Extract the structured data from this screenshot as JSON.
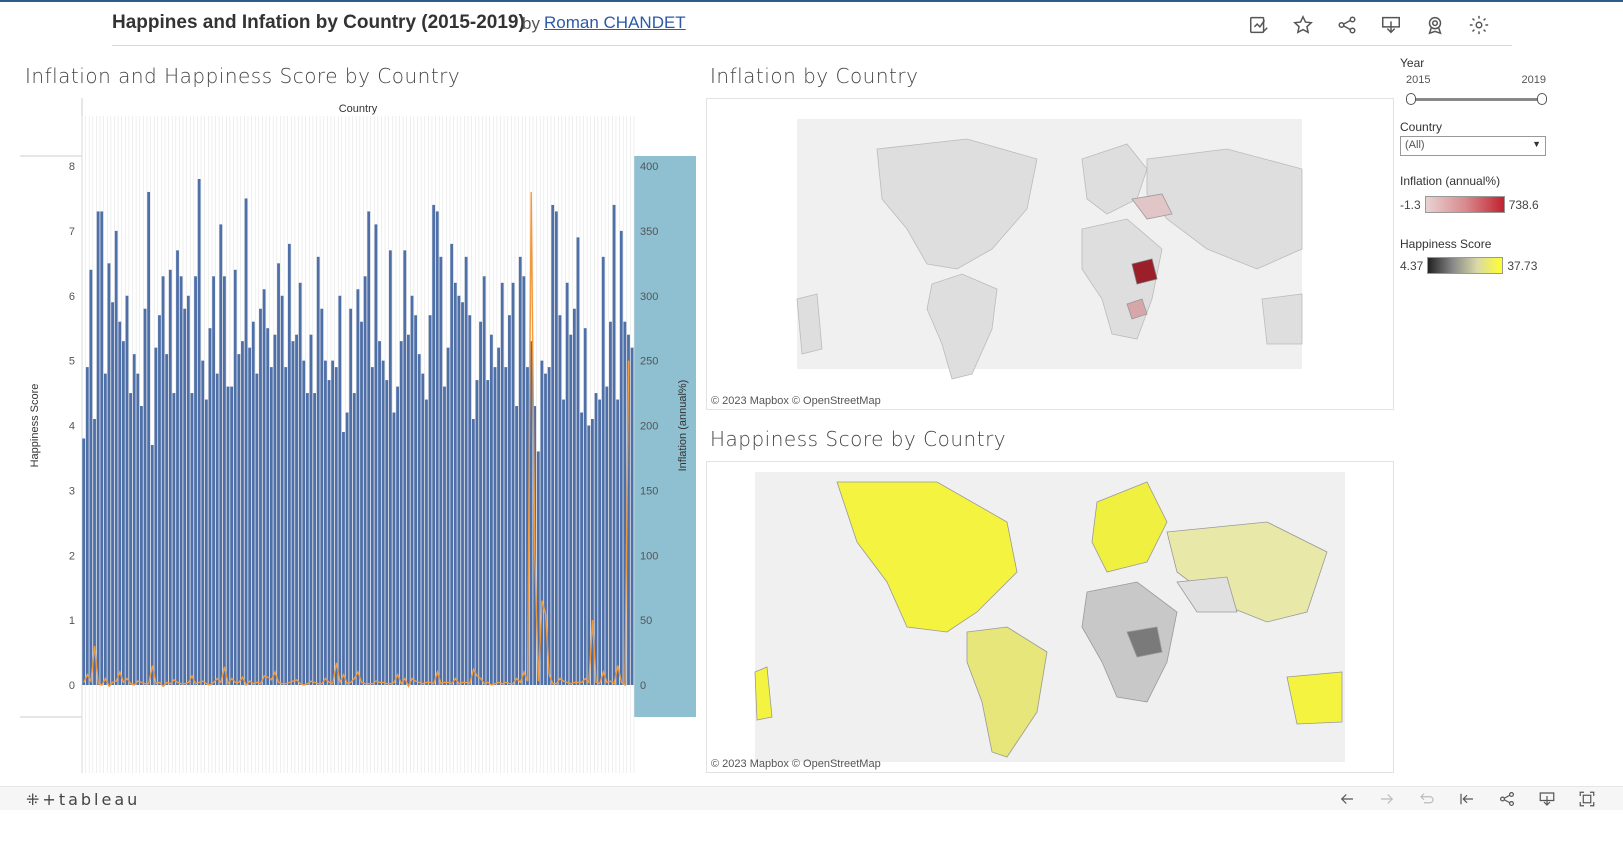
{
  "header": {
    "title": "Happines and Infation by Country (2015-2019)",
    "by": "by",
    "author": "Roman CHANDET",
    "icons": [
      "edit-icon",
      "star-icon",
      "share-icon",
      "download-icon",
      "award-icon",
      "gear-icon"
    ]
  },
  "panels": {
    "bar_chart_title": "Inflation and Happiness Score by Country",
    "inflation_map_title": "Inflation by Country",
    "happiness_map_title": "Happiness Score by Country",
    "map_attribution_1": "© 2023 Mapbox",
    "map_attribution_2": "© OpenStreetMap"
  },
  "filters": {
    "year_label": "Year",
    "year_min": "2015",
    "year_max": "2019",
    "country_label": "Country",
    "country_value": "(All)",
    "inflation_legend_label": "Inflation (annual%)",
    "inflation_min": "-1.3",
    "inflation_max": "738.6",
    "happiness_legend_label": "Happiness Score",
    "happiness_min": "4.37",
    "happiness_max": "37.73"
  },
  "colors": {
    "bar": "#4e6fa7",
    "line": "#f09a3e",
    "right_axis_bg": "#8fc0d1",
    "inflation_high": "#c0232f",
    "happiness_high": "#ffff30"
  },
  "chart_data": {
    "type": "bar",
    "xlabel": "Country",
    "ylabel": "Happiness Score",
    "y2label": "Inflation (annual%)",
    "ylim": [
      0,
      8
    ],
    "y2lim": [
      0,
      400
    ],
    "yticks": [
      "0",
      "1",
      "2",
      "3",
      "4",
      "5",
      "6",
      "7",
      "8"
    ],
    "y2ticks": [
      "0",
      "50",
      "100",
      "150",
      "200",
      "250",
      "300",
      "350",
      "400"
    ],
    "series": [
      {
        "name": "Happiness Score",
        "values": [
          3.8,
          4.9,
          6.4,
          4.1,
          7.3,
          7.3,
          4.8,
          6.5,
          5.9,
          7.0,
          5.6,
          5.3,
          6.0,
          4.5,
          5.1,
          4.8,
          4.3,
          5.8,
          7.6,
          3.7,
          5.2,
          5.7,
          6.3,
          5.1,
          6.4,
          4.5,
          6.7,
          6.3,
          5.8,
          6.0,
          4.5,
          6.3,
          7.8,
          5.0,
          4.4,
          5.5,
          6.3,
          4.8,
          7.1,
          6.3,
          4.6,
          4.6,
          6.4,
          5.1,
          5.3,
          7.5,
          5.2,
          5.6,
          4.8,
          5.8,
          6.1,
          5.5,
          4.9,
          5.4,
          6.5,
          6.0,
          4.9,
          6.8,
          5.3,
          5.4,
          6.2,
          5.0,
          4.5,
          5.4,
          4.5,
          6.6,
          5.8,
          5.0,
          4.7,
          5.0,
          4.9,
          6.0,
          3.9,
          4.2,
          5.8,
          4.5,
          6.1,
          5.6,
          6.3,
          7.3,
          4.9,
          7.1,
          5.3,
          5.0,
          4.7,
          6.7,
          4.2,
          4.6,
          5.3,
          6.7,
          5.4,
          6.0,
          5.7,
          5.1,
          4.8,
          4.4,
          5.7,
          7.4,
          7.3,
          6.6,
          4.6,
          5.2,
          6.8,
          6.2,
          6.0,
          5.9,
          6.6,
          5.7,
          4.1,
          4.7,
          5.6,
          6.3,
          4.7,
          5.4,
          4.9,
          5.2,
          6.2,
          4.9,
          5.7,
          6.2,
          4.3,
          6.6,
          6.3,
          4.9,
          5.3,
          4.3,
          3.6,
          5.0,
          4.8,
          4.9,
          7.4,
          7.3,
          5.7,
          4.4,
          6.2,
          5.4,
          5.8,
          6.9,
          4.2,
          5.5,
          4.0,
          4.1,
          4.5,
          4.4,
          6.6,
          4.6,
          5.6,
          7.4,
          4.4,
          7.0,
          5.6,
          5.4,
          5.2
        ],
        "color": "#4e6fa7"
      },
      {
        "name": "Inflation (annual%)",
        "values": [
          2,
          8,
          3,
          30,
          1,
          0,
          5,
          -1,
          2,
          3,
          10,
          2,
          5,
          1,
          0,
          3,
          2,
          1,
          1,
          15,
          1,
          2,
          -1,
          2,
          1,
          4,
          2,
          1,
          1,
          2,
          7,
          1,
          2,
          3,
          1,
          0,
          2,
          5,
          2,
          14,
          1,
          5,
          2,
          2,
          6,
          0,
          3,
          1,
          2,
          1,
          7,
          6,
          4,
          10,
          2,
          1,
          1,
          2,
          3,
          4,
          1,
          0,
          1,
          3,
          2,
          1,
          1,
          5,
          2,
          1,
          17,
          2,
          8,
          1,
          2,
          5,
          10,
          2,
          1,
          1,
          1,
          3,
          2,
          2,
          1,
          1,
          2,
          8,
          1,
          5,
          -1,
          5,
          3,
          2,
          1,
          2,
          2,
          1,
          10,
          1,
          2,
          2,
          1,
          5,
          1,
          2,
          2,
          1,
          12,
          7,
          5,
          1,
          2,
          0,
          1,
          2,
          1,
          2,
          1,
          1,
          5,
          2,
          10,
          3,
          380,
          100,
          3,
          65,
          55,
          8,
          1,
          1,
          5,
          3,
          2,
          1,
          2,
          2,
          2,
          5,
          2,
          50,
          2,
          1,
          10,
          2,
          3,
          1,
          15,
          2,
          0,
          250
        ],
        "color": "#f09a3e"
      }
    ]
  }
}
